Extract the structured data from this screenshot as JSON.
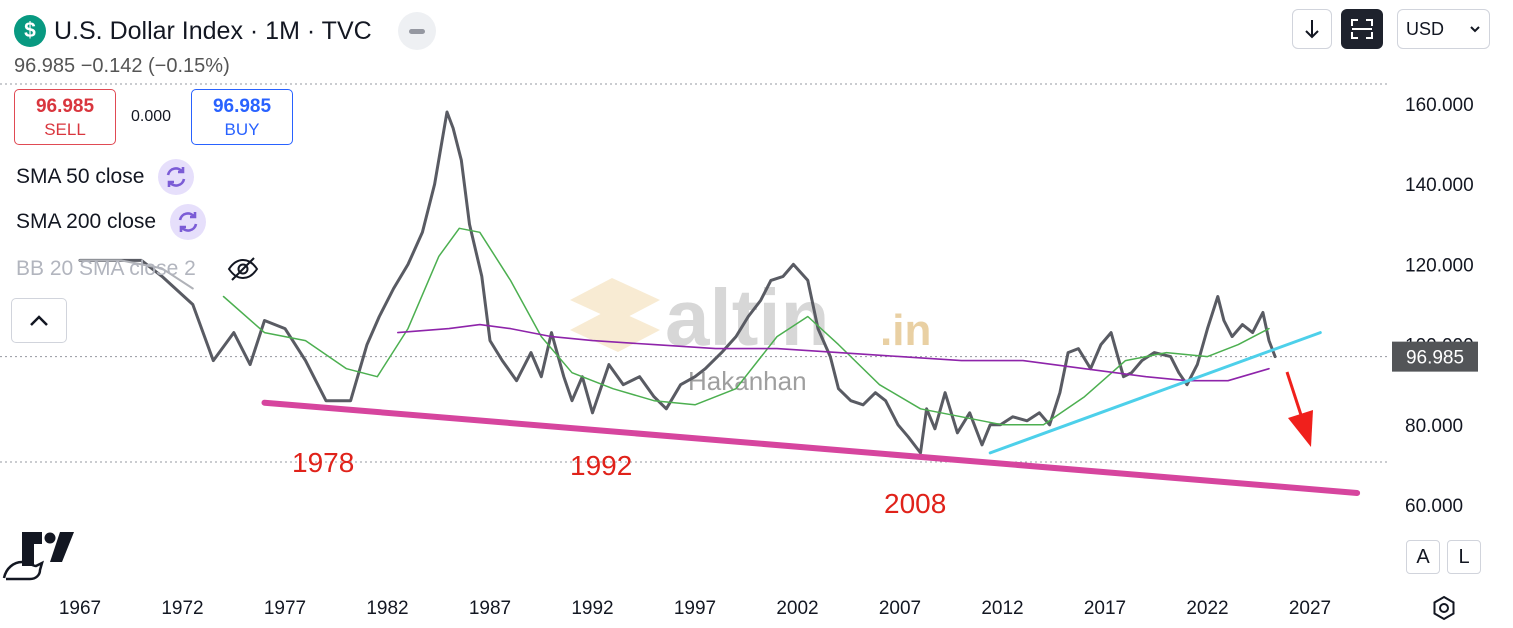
{
  "header": {
    "symbol_icon_glyph": "$",
    "title": "U.S. Dollar Index · 1M · TVC",
    "price_line": "96.985  −0.142 (−0.15%)"
  },
  "trade": {
    "sell_price": "96.985",
    "sell_label": "SELL",
    "spread": "0.000",
    "buy_price": "96.985",
    "buy_label": "BUY"
  },
  "indicators": {
    "sma50": "SMA 50 close",
    "sma200": "SMA 200 close",
    "bb": "BB 20 SMA close 2"
  },
  "toolbar": {
    "currency": "USD",
    "autoscale_label": "A",
    "log_label": "L"
  },
  "watermark": {
    "brand": "altin",
    "suffix": ".in",
    "author": "Hakanhan"
  },
  "annotations": [
    "1978",
    "1992",
    "2008"
  ],
  "colors": {
    "price": "#595b63",
    "sma50": "#4caf50",
    "sma200": "#8e24aa",
    "support": "#d6459e",
    "trend": "#4dd0ea",
    "arrow": "#f0201c",
    "annotation_text": "#e0221a",
    "sell": "#d9363e",
    "buy": "#2962ff"
  },
  "chart_data": {
    "type": "line",
    "title": "U.S. Dollar Index · 1M · TVC",
    "xlabel": "",
    "ylabel": "",
    "x_ticks": [
      "1967",
      "1972",
      "1977",
      "1982",
      "1987",
      "1992",
      "1997",
      "2002",
      "2007",
      "2012",
      "2017",
      "2022",
      "2027"
    ],
    "y_ticks": [
      "60.000",
      "80.000",
      "100.000",
      "120.000",
      "140.000",
      "160.000"
    ],
    "ylim": [
      55,
      165
    ],
    "xlim": [
      1965.5,
      2030.5
    ],
    "last_price_label": "96.985",
    "grid": false,
    "series": [
      {
        "name": "",
        "role": "price",
        "x": [
          1967.0,
          1970.0,
          1971.0,
          1972.5,
          1973.5,
          1974.5,
          1975.3,
          1976.0,
          1977.0,
          1978.0,
          1979.0,
          1980.2,
          1981.0,
          1981.6,
          1982.3,
          1983.0,
          1983.7,
          1984.3,
          1984.9,
          1985.2,
          1985.6,
          1986.0,
          1986.6,
          1987.0,
          1987.6,
          1988.3,
          1989.0,
          1989.5,
          1990.0,
          1990.6,
          1991.0,
          1991.5,
          1992.0,
          1992.4,
          1992.8,
          1993.5,
          1994.3,
          1995.0,
          1995.6,
          1996.3,
          1997.0,
          1997.5,
          1998.3,
          1999.0,
          1999.6,
          2000.2,
          2000.7,
          2001.3,
          2001.8,
          2002.5,
          2003.0,
          2003.6,
          2004.0,
          2004.6,
          2005.2,
          2005.8,
          2006.3,
          2006.9,
          2007.4,
          2008.0,
          2008.3,
          2008.7,
          2009.2,
          2009.8,
          2010.4,
          2011.0,
          2011.4,
          2011.9,
          2012.5,
          2013.2,
          2013.8,
          2014.3,
          2014.8,
          2015.2,
          2015.7,
          2016.3,
          2016.8,
          2017.3,
          2017.9,
          2018.3,
          2018.8,
          2019.4,
          2020.2,
          2020.6,
          2021.0,
          2021.5,
          2022.0,
          2022.5,
          2022.8,
          2023.2,
          2023.7,
          2024.2,
          2024.7,
          2025.0,
          2025.3
        ],
        "values": [
          121,
          121,
          117,
          110,
          96,
          103,
          95,
          106,
          104,
          96,
          86,
          86,
          100,
          107,
          114,
          120,
          128,
          140,
          158,
          154,
          146,
          130,
          117,
          101,
          96,
          91,
          98,
          92,
          103,
          92,
          86,
          92,
          83,
          89,
          95,
          90,
          92,
          87,
          84,
          90,
          92,
          94,
          98,
          102,
          107,
          111,
          116,
          117,
          120,
          116,
          104,
          97,
          89,
          86,
          85,
          88,
          86,
          80,
          77,
          73,
          84,
          79,
          88,
          78,
          83,
          75,
          80,
          80,
          82,
          81,
          83,
          80,
          88,
          98,
          99,
          94,
          100,
          103,
          92,
          93,
          96,
          98,
          97,
          93,
          90,
          95,
          104,
          112,
          106,
          102,
          105,
          103,
          108,
          101,
          97
        ]
      },
      {
        "name": "SMA 50 close",
        "x": [
          1974.0,
          1976.0,
          1978.0,
          1980.0,
          1981.5,
          1983.0,
          1984.5,
          1985.5,
          1986.5,
          1988.0,
          1989.5,
          1991.0,
          1993.0,
          1995.0,
          1997.0,
          1999.0,
          2001.0,
          2002.5,
          2004.0,
          2006.0,
          2008.0,
          2010.0,
          2012.0,
          2014.0,
          2016.0,
          2018.0,
          2020.0,
          2022.0,
          2023.5,
          2025.0
        ],
        "values": [
          112,
          103,
          101,
          94,
          92,
          104,
          122,
          129,
          128,
          116,
          102,
          93,
          89,
          86,
          85,
          89,
          102,
          107,
          100,
          90,
          84,
          82,
          80,
          80,
          87,
          96,
          98,
          97,
          100,
          104
        ]
      },
      {
        "name": "SMA 200 close",
        "x": [
          1982.5,
          1985.0,
          1986.5,
          1988.0,
          1990.0,
          1992.0,
          1995.0,
          1998.0,
          2001.0,
          2004.0,
          2007.0,
          2010.0,
          2013.0,
          2016.0,
          2019.0,
          2021.0,
          2023.0,
          2025.0
        ],
        "values": [
          103,
          104,
          105,
          104,
          102,
          101,
          100,
          99,
          99,
          98,
          97,
          96,
          96,
          94,
          92,
          91,
          91,
          94
        ]
      },
      {
        "name": "BB 20 SMA close 2",
        "x": [
          1967.0,
          1969.0,
          1971.0,
          1972.5
        ],
        "values": [
          121,
          121,
          119,
          114
        ]
      },
      {
        "name": "",
        "role": "support-line",
        "x": [
          1976.0,
          2029.3
        ],
        "values": [
          85.5,
          63
        ]
      },
      {
        "name": "",
        "role": "uptrend-line",
        "x": [
          2011.4,
          2027.5
        ],
        "values": [
          73,
          103
        ]
      }
    ]
  }
}
